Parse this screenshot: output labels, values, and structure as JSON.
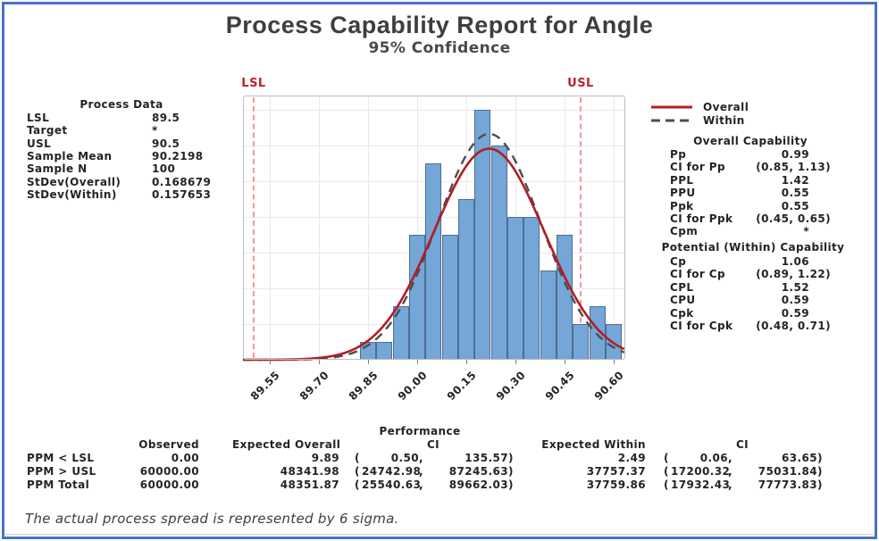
{
  "title": "Process Capability Report for Angle",
  "subtitle": "95% Confidence",
  "process_data": {
    "heading": "Process Data",
    "rows": [
      {
        "label": "LSL",
        "value": "89.5"
      },
      {
        "label": "Target",
        "value": "*"
      },
      {
        "label": "USL",
        "value": "90.5"
      },
      {
        "label": "Sample Mean",
        "value": "90.2198"
      },
      {
        "label": "Sample N",
        "value": "100"
      },
      {
        "label": "StDev(Overall)",
        "value": "0.168679"
      },
      {
        "label": "StDev(Within)",
        "value": "0.157653"
      }
    ]
  },
  "legend": {
    "overall": "Overall",
    "within": "Within"
  },
  "overall_capability": {
    "heading": "Overall Capability",
    "rows": [
      {
        "label": "Pp",
        "value": "0.99"
      },
      {
        "label": "CI for Pp",
        "value": "(0.85, 1.13)"
      },
      {
        "label": "PPL",
        "value": "1.42"
      },
      {
        "label": "PPU",
        "value": "0.55"
      },
      {
        "label": "Ppk",
        "value": "0.55"
      },
      {
        "label": "CI for Ppk",
        "value": "(0.45, 0.65)"
      },
      {
        "label": "Cpm",
        "value": "*"
      }
    ]
  },
  "within_capability": {
    "heading": "Potential (Within) Capability",
    "rows": [
      {
        "label": "Cp",
        "value": "1.06"
      },
      {
        "label": "CI for Cp",
        "value": "(0.89, 1.22)"
      },
      {
        "label": "CPL",
        "value": "1.52"
      },
      {
        "label": "CPU",
        "value": "0.59"
      },
      {
        "label": "Cpk",
        "value": "0.59"
      },
      {
        "label": "CI for Cpk",
        "value": "(0.48, 0.71)"
      }
    ]
  },
  "performance": {
    "heading": "Performance",
    "columns": [
      "Observed",
      "Expected Overall",
      "CI",
      "Expected Within",
      "CI"
    ],
    "rows": [
      {
        "label": "PPM < LSL",
        "observed": "0.00",
        "expected_overall": "9.89",
        "ci_overall": [
          "0.50",
          "135.57"
        ],
        "expected_within": "2.49",
        "ci_within": [
          "0.06",
          "63.65"
        ]
      },
      {
        "label": "PPM > USL",
        "observed": "60000.00",
        "expected_overall": "48341.98",
        "ci_overall": [
          "24742.98",
          "87245.63"
        ],
        "expected_within": "37757.37",
        "ci_within": [
          "17200.32",
          "75031.84"
        ]
      },
      {
        "label": "PPM Total",
        "observed": "60000.00",
        "expected_overall": "48351.87",
        "ci_overall": [
          "25540.63",
          "89662.03"
        ],
        "expected_within": "37759.86",
        "ci_within": [
          "17932.43",
          "77773.83"
        ]
      }
    ]
  },
  "footnote": "The actual process spread is represented by 6 sigma.",
  "chart_data": {
    "type": "bar",
    "subtype": "capability-histogram",
    "title": "Process Capability Report for Angle",
    "bin_width": 0.05,
    "bin_centers": [
      89.85,
      89.9,
      89.95,
      90.0,
      90.05,
      90.1,
      90.15,
      90.2,
      90.25,
      90.3,
      90.35,
      90.4,
      90.45,
      90.5,
      90.55,
      90.6
    ],
    "counts": [
      1,
      1,
      3,
      7,
      11,
      7,
      9,
      14,
      12,
      8,
      8,
      5,
      7,
      2,
      3,
      2
    ],
    "sample_n": 100,
    "x_tick_values": [
      89.55,
      89.7,
      89.85,
      90.0,
      90.15,
      90.3,
      90.45,
      90.6
    ],
    "x_tick_labels": [
      "89.55",
      "89.70",
      "89.85",
      "90.00",
      "90.15",
      "90.30",
      "90.45",
      "90.60"
    ],
    "lsl": 89.5,
    "usl": 90.5,
    "lsl_label": "LSL",
    "usl_label": "USL",
    "overall_curve": {
      "mean": 90.2198,
      "stdev": 0.168679
    },
    "within_curve": {
      "mean": 90.2198,
      "stdev": 0.157653
    },
    "y_grid_step_counts": 2,
    "grid": true,
    "legend_position": "top-right",
    "colors": {
      "bar_fill": "#74A6D8",
      "bar_border": "#4F6D8E",
      "overall": "#B01E24",
      "within": "#4D4D4D",
      "spec_line": "#F4989B",
      "spec_label": "#BE2126",
      "grid": "#E9E9E9",
      "plot_border": "#BDBDBD",
      "frame": "#4673C5"
    }
  }
}
